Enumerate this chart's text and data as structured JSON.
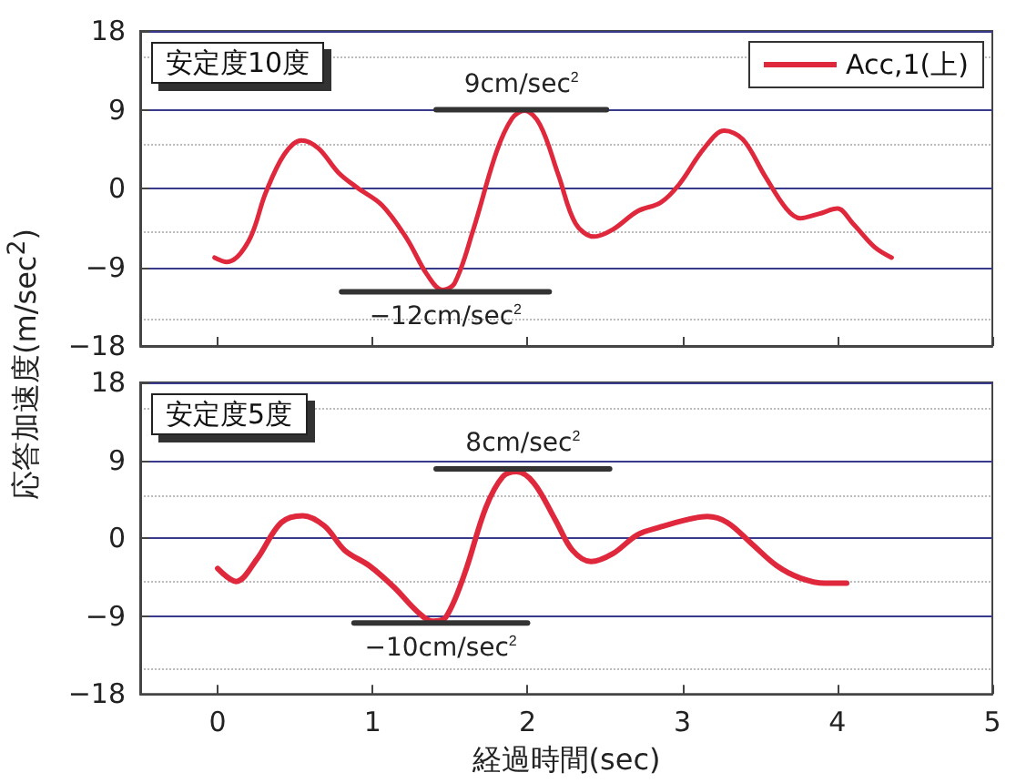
{
  "chart_data": [
    {
      "type": "line",
      "title": "安定度10度",
      "ylabel": "応答加速度(m/sec$^{2}$)",
      "legend": "top right",
      "grid": "y",
      "tick_labels": "y",
      "line_style": "solid",
      "marker": "none",
      "xlim": [
        -0.5,
        5
      ],
      "xticks": [
        0,
        1,
        2,
        3,
        4,
        5
      ],
      "ylim": [
        -18,
        18
      ],
      "yticks": [
        -18,
        -9,
        0,
        9,
        18
      ],
      "series": [
        {
          "name": "Acc,1(上)",
          "color": "#e0283c",
          "x": [
            -0.02,
            0.06,
            0.2,
            0.31,
            0.43,
            0.54,
            0.65,
            0.78,
            0.9,
            1.06,
            1.22,
            1.35,
            1.45,
            1.53,
            1.65,
            1.8,
            1.9,
            1.98,
            2.08,
            2.2,
            2.31,
            2.43,
            2.55,
            2.71,
            2.86,
            2.98,
            3.14,
            3.27,
            3.39,
            3.53,
            3.67,
            3.76,
            3.88,
            4.0,
            4.1,
            4.24,
            4.35
          ],
          "values": [
            -7.9,
            -8.4,
            -6.0,
            -0.5,
            3.9,
            5.5,
            4.6,
            1.8,
            0.1,
            -1.9,
            -5.7,
            -9.8,
            -11.6,
            -10.8,
            -4.7,
            4.2,
            8.0,
            8.9,
            7.3,
            1.5,
            -4.0,
            -5.5,
            -4.7,
            -2.6,
            -1.6,
            0.5,
            4.6,
            6.6,
            5.6,
            1.5,
            -2.3,
            -3.4,
            -2.9,
            -2.3,
            -4.0,
            -6.7,
            -7.9
          ]
        },
        {
          "type": "line",
          "color": "#333333",
          "x": [
            1.41,
            2.51
          ],
          "values": [
            9,
            9
          ]
        },
        {
          "type": "line",
          "color": "#333333",
          "x": [
            0.8,
            2.14
          ],
          "values": [
            -11.8,
            -11.8
          ]
        }
      ],
      "annotations": [
        {
          "text": "9cm/sec$^{2}$",
          "x": 1.96,
          "y": 9
        },
        {
          "text": "−12cm/sec$^{2}$",
          "x": 1.47,
          "y": -11.8
        }
      ]
    },
    {
      "type": "line",
      "title": "安定度5度",
      "xlabel": "経過時間(sec)",
      "grid": "y",
      "line_style": "solid",
      "marker": "none",
      "xlim": [
        -0.5,
        5
      ],
      "xticks": [
        0,
        1,
        2,
        3,
        4,
        5
      ],
      "ylim": [
        -18,
        18
      ],
      "yticks": [
        -18,
        -9,
        0,
        9,
        18
      ],
      "series": [
        {
          "color": "#e0283c",
          "x": [
            0,
            0.12,
            0.25,
            0.41,
            0.55,
            0.69,
            0.82,
            0.98,
            1.14,
            1.29,
            1.39,
            1.47,
            1.59,
            1.73,
            1.84,
            1.93,
            2.04,
            2.18,
            2.29,
            2.41,
            2.55,
            2.71,
            2.86,
            3.02,
            3.16,
            3.29,
            3.45,
            3.61,
            3.76,
            3.92,
            4.06
          ],
          "values": [
            -3.5,
            -5.0,
            -2.5,
            1.8,
            2.6,
            1.4,
            -1.4,
            -3.2,
            -5.7,
            -8.5,
            -9.6,
            -9.2,
            -4.3,
            3.5,
            7.1,
            7.7,
            6.4,
            2.1,
            -1.4,
            -2.7,
            -1.8,
            0.4,
            1.3,
            2.1,
            2.5,
            1.8,
            -0.7,
            -3.2,
            -4.6,
            -5.2,
            -5.2
          ]
        },
        {
          "type": "line",
          "color": "#333333",
          "x": [
            1.41,
            2.53
          ],
          "values": [
            8.0,
            8.0
          ]
        },
        {
          "type": "line",
          "color": "#333333",
          "x": [
            0.88,
            2.0
          ],
          "values": [
            -9.8,
            -9.8
          ]
        }
      ],
      "annotations": [
        {
          "text": "8cm/sec$^{2}$",
          "x": 1.97,
          "y": 8.0
        },
        {
          "text": "−10cm/sec$^{2}$",
          "x": 1.44,
          "y": -9.8
        }
      ]
    }
  ]
}
